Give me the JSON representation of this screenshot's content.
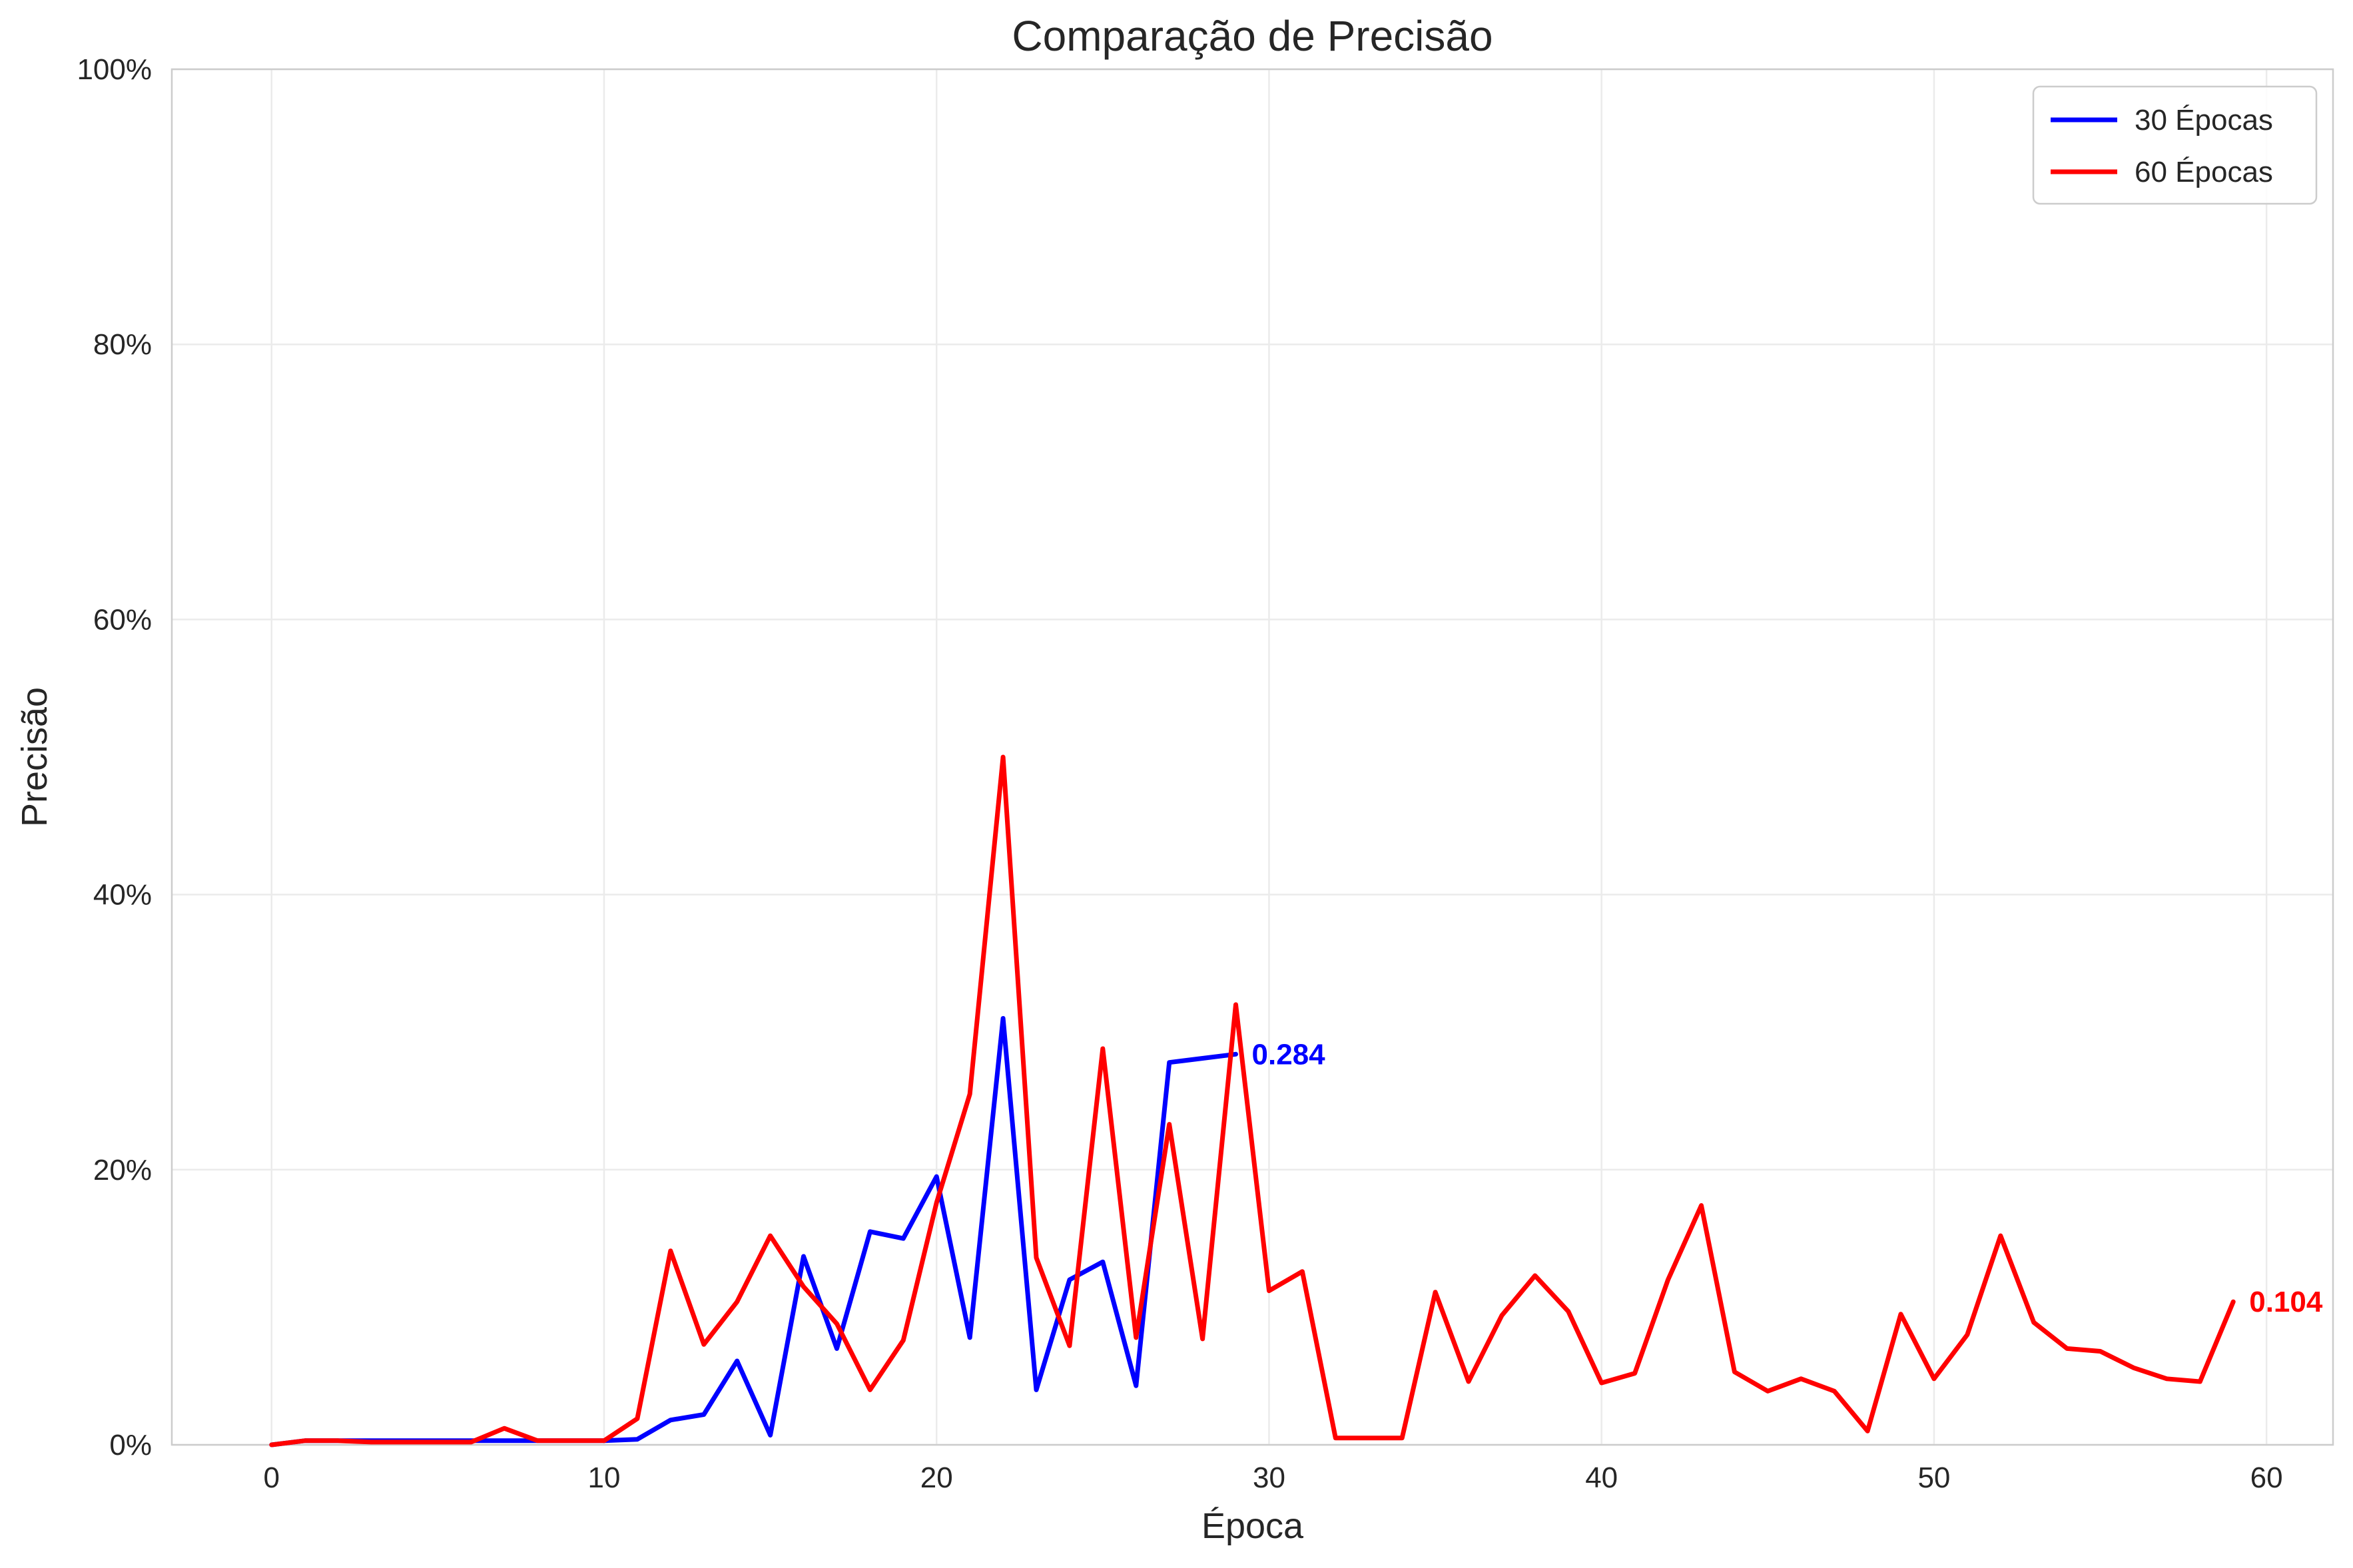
{
  "chart_data": {
    "type": "line",
    "title": "Comparação de Precisão",
    "xlabel": "Época",
    "ylabel": "Precisão",
    "xlim": [
      -3,
      62
    ],
    "ylim": [
      0,
      1
    ],
    "x_ticks": [
      0,
      10,
      20,
      30,
      40,
      50,
      60
    ],
    "x_tick_labels": [
      "0",
      "10",
      "20",
      "30",
      "40",
      "50",
      "60"
    ],
    "y_ticks": [
      0,
      0.2,
      0.4,
      0.6,
      0.8,
      1.0
    ],
    "y_tick_labels": [
      "0%",
      "20%",
      "40%",
      "60%",
      "80%",
      "100%"
    ],
    "grid": true,
    "legend_position": "top-right",
    "series": [
      {
        "name": "30 Épocas",
        "color": "#0000ff",
        "x": [
          0,
          1,
          2,
          3,
          4,
          5,
          6,
          7,
          8,
          9,
          10,
          11,
          12,
          13,
          14,
          15,
          16,
          17,
          18,
          19,
          20,
          21,
          22,
          23,
          24,
          25,
          26,
          27,
          28,
          29
        ],
        "values": [
          0,
          0.003,
          0.003,
          0.003,
          0.003,
          0.003,
          0.003,
          0.003,
          0.003,
          0.003,
          0.003,
          0.004,
          0.018,
          0.022,
          0.061,
          0.007,
          0.137,
          0.07,
          0.155,
          0.15,
          0.195,
          0.078,
          0.31,
          0.04,
          0.12,
          0.133,
          0.043,
          0.278,
          0.281,
          0.284
        ],
        "end_label": "0.284"
      },
      {
        "name": "60 Épocas",
        "color": "#ff0000",
        "x": [
          0,
          1,
          2,
          3,
          4,
          5,
          6,
          7,
          8,
          9,
          10,
          11,
          12,
          13,
          14,
          15,
          16,
          17,
          18,
          19,
          20,
          21,
          22,
          23,
          24,
          25,
          26,
          27,
          28,
          29,
          30,
          31,
          32,
          33,
          34,
          35,
          36,
          37,
          38,
          39,
          40,
          41,
          42,
          43,
          44,
          45,
          46,
          47,
          48,
          49,
          50,
          51,
          52,
          53,
          54,
          55,
          56,
          57,
          58,
          59
        ],
        "values": [
          0,
          0.003,
          0.003,
          0.002,
          0.002,
          0.002,
          0.002,
          0.012,
          0.003,
          0.003,
          0.003,
          0.019,
          0.141,
          0.073,
          0.104,
          0.152,
          0.115,
          0.088,
          0.04,
          0.076,
          0.176,
          0.255,
          0.5,
          0.136,
          0.072,
          0.288,
          0.078,
          0.233,
          0.077,
          0.32,
          0.112,
          0.126,
          0.005,
          0.005,
          0.005,
          0.111,
          0.046,
          0.094,
          0.123,
          0.097,
          0.045,
          0.052,
          0.12,
          0.174,
          0.053,
          0.039,
          0.048,
          0.039,
          0.01,
          0.095,
          0.048,
          0.08,
          0.152,
          0.089,
          0.07,
          0.068,
          0.056,
          0.048,
          0.046,
          0.104
        ],
        "end_label": "0.104"
      }
    ]
  }
}
